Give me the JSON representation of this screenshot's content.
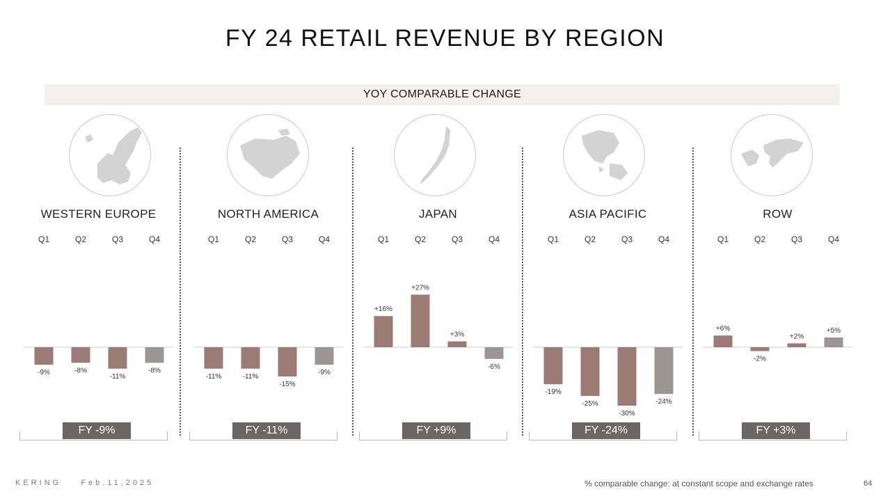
{
  "title": "FY 24 RETAIL REVENUE BY REGION",
  "banner": "YOY COMPARABLE CHANGE",
  "colors": {
    "negative_or_positive_bar": "#9c7b75",
    "q4_bar": "#9d9592",
    "fy_box": "#6d6563",
    "banner_bg": "#f7efea",
    "map_fill": "#d3d3d3"
  },
  "footer": {
    "company": "KERING",
    "date": "Feb.11,2025",
    "note": "% comparable change: at constant scope and exchange rates",
    "page": "64"
  },
  "regions": [
    {
      "name": "WESTERN EUROPE",
      "icon": "europe-map-icon",
      "fy": "FY -9%"
    },
    {
      "name": "NORTH AMERICA",
      "icon": "north-america-map-icon",
      "fy": "FY -11%"
    },
    {
      "name": "JAPAN",
      "icon": "japan-map-icon",
      "fy": "FY +9%"
    },
    {
      "name": "ASIA PACIFIC",
      "icon": "asia-pacific-map-icon",
      "fy": "FY -24%"
    },
    {
      "name": "ROW",
      "icon": "world-map-icon",
      "fy": "FY +3%"
    }
  ],
  "chart_data": [
    {
      "type": "bar",
      "title": "WESTERN EUROPE",
      "categories": [
        "Q1",
        "Q2",
        "Q3",
        "Q4"
      ],
      "values": [
        -9,
        -8,
        -11,
        -8
      ],
      "labels": [
        "-9%",
        "-8%",
        "-11%",
        "-8%"
      ],
      "fy": "FY -9%"
    },
    {
      "type": "bar",
      "title": "NORTH AMERICA",
      "categories": [
        "Q1",
        "Q2",
        "Q3",
        "Q4"
      ],
      "values": [
        -11,
        -11,
        -15,
        -9
      ],
      "labels": [
        "-11%",
        "-11%",
        "-15%",
        "-9%"
      ],
      "fy": "FY -11%"
    },
    {
      "type": "bar",
      "title": "JAPAN",
      "categories": [
        "Q1",
        "Q2",
        "Q3",
        "Q4"
      ],
      "values": [
        16,
        27,
        3,
        -6
      ],
      "labels": [
        "+16%",
        "+27%",
        "+3%",
        "-6%"
      ],
      "fy": "FY +9%"
    },
    {
      "type": "bar",
      "title": "ASIA PACIFIC",
      "categories": [
        "Q1",
        "Q2",
        "Q3",
        "Q4"
      ],
      "values": [
        -19,
        -25,
        -30,
        -24
      ],
      "labels": [
        "-19%",
        "-25%",
        "-30%",
        "-24%"
      ],
      "fy": "FY -24%"
    },
    {
      "type": "bar",
      "title": "ROW",
      "categories": [
        "Q1",
        "Q2",
        "Q3",
        "Q4"
      ],
      "values": [
        6,
        -2,
        2,
        5
      ],
      "labels": [
        "+6%",
        "-2%",
        "+2%",
        "+5%"
      ],
      "fy": "FY +3%"
    }
  ]
}
